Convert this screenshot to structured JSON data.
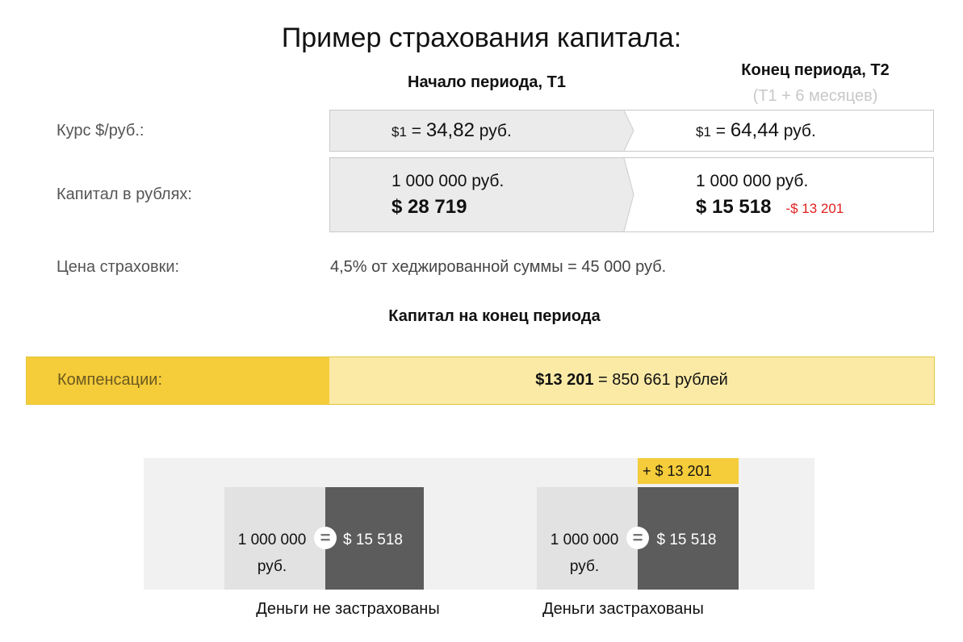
{
  "title": "Пример страхования капитала:",
  "columns": {
    "start": "Начало периода, Т1",
    "end": "Конец периода, Т2",
    "end_sub": "(Т1 + 6 месяцев)"
  },
  "rate_row": {
    "label": "Курс $/руб.:",
    "t1": {
      "prefix": "$1",
      "eq": " = ",
      "value": "34,82",
      "unit": " руб."
    },
    "t2": {
      "prefix": "$1",
      "eq": " = ",
      "value": "64,44",
      "unit": " руб."
    }
  },
  "capital_row": {
    "label": "Капитал в рублях:",
    "t1": {
      "rub": "1 000 000 руб.",
      "usd": "$ 28 719"
    },
    "t2": {
      "rub": "1 000 000 руб.",
      "usd": "$ 15 518",
      "loss": "-$ 13 201"
    }
  },
  "price_row": {
    "label": "Цена страховки:",
    "value": "4,5% от хеджированной суммы = 45 000 руб."
  },
  "end_capital_heading": "Капитал на конец периода",
  "compensation": {
    "label": "Компенсации:",
    "usd": "$13 201",
    "rest": " = 850 661 рублей"
  },
  "illustration": {
    "uninsured": {
      "rub_line1": "1 000 000",
      "rub_line2": "руб.",
      "eq": "=",
      "usd": "$ 15 518",
      "caption": "Деньги не застрахованы"
    },
    "insured": {
      "rub_line1": "1 000 000",
      "rub_line2": "руб.",
      "eq": "=",
      "usd": "$ 15 518",
      "bonus": "+ $ 13 201",
      "caption": "Деньги застрахованы"
    }
  },
  "colors": {
    "accent_yellow": "#f5cc3a",
    "light_yellow": "#fbeaa6",
    "loss_red": "#e02020",
    "dark_block": "#5c5c5c"
  }
}
